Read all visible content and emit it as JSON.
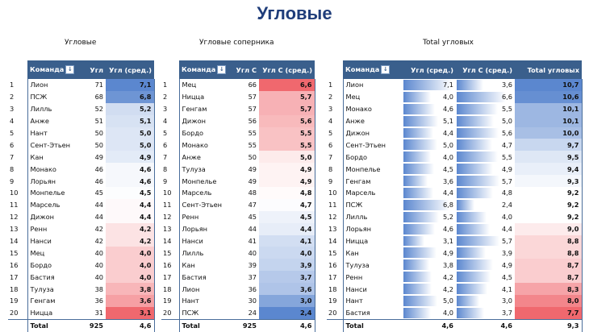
{
  "title": "Угловые",
  "subtitles": {
    "t1": "Угловые",
    "t2": "Угловые соперника",
    "t3": "Total угловых"
  },
  "table1": {
    "headers": {
      "team": "Команда",
      "a": "Угл",
      "b": "Угл (сред.)"
    },
    "rows": [
      {
        "rank": "1",
        "team": "Лион",
        "a": "71",
        "b": "7,1"
      },
      {
        "rank": "2",
        "team": "ПСЖ",
        "a": "68",
        "b": "6,8"
      },
      {
        "rank": "3",
        "team": "Лилль",
        "a": "52",
        "b": "5,2"
      },
      {
        "rank": "4",
        "team": "Анже",
        "a": "51",
        "b": "5,1"
      },
      {
        "rank": "5",
        "team": "Нант",
        "a": "50",
        "b": "5,0"
      },
      {
        "rank": "6",
        "team": "Сент-Этьен",
        "a": "50",
        "b": "5,0"
      },
      {
        "rank": "7",
        "team": "Кан",
        "a": "49",
        "b": "4,9"
      },
      {
        "rank": "8",
        "team": "Монако",
        "a": "46",
        "b": "4,6"
      },
      {
        "rank": "9",
        "team": "Лорьян",
        "a": "46",
        "b": "4,6"
      },
      {
        "rank": "10",
        "team": "Монпелье",
        "a": "45",
        "b": "4,5"
      },
      {
        "rank": "11",
        "team": "Марсель",
        "a": "44",
        "b": "4,4"
      },
      {
        "rank": "12",
        "team": "Дижон",
        "a": "44",
        "b": "4,4"
      },
      {
        "rank": "13",
        "team": "Ренн",
        "a": "42",
        "b": "4,2"
      },
      {
        "rank": "14",
        "team": "Нанси",
        "a": "42",
        "b": "4,2"
      },
      {
        "rank": "15",
        "team": "Мец",
        "a": "40",
        "b": "4,0"
      },
      {
        "rank": "16",
        "team": "Бордо",
        "a": "40",
        "b": "4,0"
      },
      {
        "rank": "17",
        "team": "Бастия",
        "a": "40",
        "b": "4,0"
      },
      {
        "rank": "18",
        "team": "Тулуза",
        "a": "38",
        "b": "3,8"
      },
      {
        "rank": "19",
        "team": "Генгам",
        "a": "36",
        "b": "3,6"
      },
      {
        "rank": "20",
        "team": "Ницца",
        "a": "31",
        "b": "3,1"
      }
    ],
    "total": {
      "label": "Total",
      "a": "925",
      "b": "4,6"
    }
  },
  "table2": {
    "headers": {
      "team": "Команда",
      "a": "Угл С",
      "b": "Угл С (сред.)"
    },
    "rows": [
      {
        "rank": "1",
        "team": "Мец",
        "a": "66",
        "b": "6,6"
      },
      {
        "rank": "2",
        "team": "Ницца",
        "a": "57",
        "b": "5,7"
      },
      {
        "rank": "3",
        "team": "Генгам",
        "a": "57",
        "b": "5,7"
      },
      {
        "rank": "4",
        "team": "Дижон",
        "a": "56",
        "b": "5,6"
      },
      {
        "rank": "5",
        "team": "Бордо",
        "a": "55",
        "b": "5,5"
      },
      {
        "rank": "6",
        "team": "Монако",
        "a": "55",
        "b": "5,5"
      },
      {
        "rank": "7",
        "team": "Анже",
        "a": "50",
        "b": "5,0"
      },
      {
        "rank": "8",
        "team": "Тулуза",
        "a": "49",
        "b": "4,9"
      },
      {
        "rank": "9",
        "team": "Монпелье",
        "a": "49",
        "b": "4,9"
      },
      {
        "rank": "10",
        "team": "Марсель",
        "a": "48",
        "b": "4,8"
      },
      {
        "rank": "11",
        "team": "Сент-Этьен",
        "a": "47",
        "b": "4,7"
      },
      {
        "rank": "12",
        "team": "Ренн",
        "a": "45",
        "b": "4,5"
      },
      {
        "rank": "13",
        "team": "Лорьян",
        "a": "44",
        "b": "4,4"
      },
      {
        "rank": "14",
        "team": "Нанси",
        "a": "41",
        "b": "4,1"
      },
      {
        "rank": "15",
        "team": "Лилль",
        "a": "40",
        "b": "4,0"
      },
      {
        "rank": "16",
        "team": "Кан",
        "a": "39",
        "b": "3,9"
      },
      {
        "rank": "17",
        "team": "Бастия",
        "a": "37",
        "b": "3,7"
      },
      {
        "rank": "18",
        "team": "Лион",
        "a": "36",
        "b": "3,6"
      },
      {
        "rank": "19",
        "team": "Нант",
        "a": "30",
        "b": "3,0"
      },
      {
        "rank": "20",
        "team": "ПСЖ",
        "a": "24",
        "b": "2,4"
      }
    ],
    "total": {
      "label": "Total",
      "a": "925",
      "b": "4,6"
    }
  },
  "table3": {
    "headers": {
      "team": "Команда",
      "a": "Угл (сред.)",
      "b": "Угл С (сред.)",
      "c": "Total угловых"
    },
    "rows": [
      {
        "rank": "1",
        "team": "Лион",
        "a": "7,1",
        "b": "3,6",
        "c": "10,7"
      },
      {
        "rank": "2",
        "team": "Мец",
        "a": "4,0",
        "b": "6,6",
        "c": "10,6"
      },
      {
        "rank": "3",
        "team": "Монако",
        "a": "4,6",
        "b": "5,5",
        "c": "10,1"
      },
      {
        "rank": "4",
        "team": "Анже",
        "a": "5,1",
        "b": "5,0",
        "c": "10,1"
      },
      {
        "rank": "5",
        "team": "Дижон",
        "a": "4,4",
        "b": "5,6",
        "c": "10,0"
      },
      {
        "rank": "6",
        "team": "Сент-Этьен",
        "a": "5,0",
        "b": "4,7",
        "c": "9,7"
      },
      {
        "rank": "7",
        "team": "Бордо",
        "a": "4,0",
        "b": "5,5",
        "c": "9,5"
      },
      {
        "rank": "8",
        "team": "Монпелье",
        "a": "4,5",
        "b": "4,9",
        "c": "9,4"
      },
      {
        "rank": "9",
        "team": "Генгам",
        "a": "3,6",
        "b": "5,7",
        "c": "9,3"
      },
      {
        "rank": "10",
        "team": "Марсель",
        "a": "4,4",
        "b": "4,8",
        "c": "9,2"
      },
      {
        "rank": "11",
        "team": "ПСЖ",
        "a": "6,8",
        "b": "2,4",
        "c": "9,2"
      },
      {
        "rank": "12",
        "team": "Лилль",
        "a": "5,2",
        "b": "4,0",
        "c": "9,2"
      },
      {
        "rank": "13",
        "team": "Лорьян",
        "a": "4,6",
        "b": "4,4",
        "c": "9,0"
      },
      {
        "rank": "14",
        "team": "Ницца",
        "a": "3,1",
        "b": "5,7",
        "c": "8,8"
      },
      {
        "rank": "15",
        "team": "Кан",
        "a": "4,9",
        "b": "3,9",
        "c": "8,8"
      },
      {
        "rank": "16",
        "team": "Тулуза",
        "a": "3,8",
        "b": "4,9",
        "c": "8,7"
      },
      {
        "rank": "17",
        "team": "Ренн",
        "a": "4,2",
        "b": "4,5",
        "c": "8,7"
      },
      {
        "rank": "18",
        "team": "Нанси",
        "a": "4,2",
        "b": "4,1",
        "c": "8,3"
      },
      {
        "rank": "19",
        "team": "Нант",
        "a": "5,0",
        "b": "3,0",
        "c": "8,0"
      },
      {
        "rank": "20",
        "team": "Бастия",
        "a": "4,0",
        "b": "3,7",
        "c": "7,7"
      }
    ],
    "total": {
      "label": "Total",
      "a": "4,6",
      "b": "4,6",
      "c": "9,3"
    }
  },
  "colors": {
    "header": "#3a5f8c",
    "blue": "#5b87cf",
    "red": "#f0686e",
    "white": "#ffffff"
  }
}
